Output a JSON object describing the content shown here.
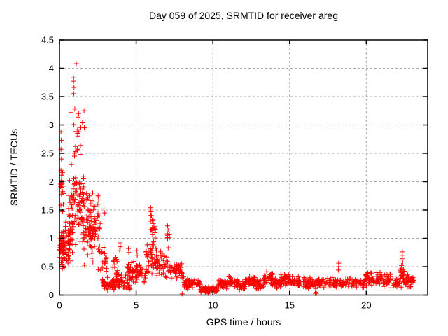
{
  "chart_data": {
    "type": "scatter",
    "title": "Day 059 of 2025, SRMTID for receiver areg",
    "xlabel": "GPS time / hours",
    "ylabel": "SRMTID / TECUs",
    "xlim": [
      0,
      24
    ],
    "ylim": [
      0,
      4.5
    ],
    "xtick_values": [
      0,
      5,
      10,
      15,
      20
    ],
    "xtick_labels": [
      "0",
      "5",
      "10",
      "15",
      "20"
    ],
    "ytick_values": [
      0,
      0.5,
      1,
      1.5,
      2,
      2.5,
      3,
      3.5,
      4,
      4.5
    ],
    "ytick_labels": [
      "0",
      "0.5",
      "1",
      "1.5",
      "2",
      "2.5",
      "3",
      "3.5",
      "4",
      "4.5"
    ],
    "grid": true,
    "legend": "none",
    "series_name": "SRMTID",
    "marker": {
      "shape": "plus",
      "color": "#ff0000",
      "size": 7,
      "stroke_width": 1
    },
    "colors": {
      "axis": "#000000",
      "grid": "#a8a8a8",
      "background": "#ffffff",
      "text": "#000000"
    },
    "max_point": [
      1.1,
      4.08
    ],
    "outlier_points": [
      [
        1.1,
        4.08
      ],
      [
        0.92,
        3.83
      ],
      [
        0.92,
        3.77
      ],
      [
        0.95,
        3.66
      ],
      [
        0.93,
        3.55
      ],
      [
        1.0,
        3.28
      ],
      [
        1.6,
        3.25
      ],
      [
        0.75,
        3.22
      ],
      [
        1.25,
        3.2
      ],
      [
        1.22,
        3.14
      ],
      [
        1.5,
        3.05
      ],
      [
        1.62,
        2.95
      ],
      [
        0.1,
        2.88
      ],
      [
        0.12,
        2.73
      ],
      [
        0.1,
        2.57
      ],
      [
        0.13,
        2.4
      ],
      [
        0.1,
        2.2
      ],
      [
        0.12,
        2.02
      ],
      [
        0.15,
        1.9
      ],
      [
        0.13,
        1.78
      ],
      [
        1.05,
        2.62
      ],
      [
        1.15,
        2.55
      ],
      [
        0.98,
        2.45
      ],
      [
        1.35,
        2.48
      ],
      [
        2.52,
        1.75
      ],
      [
        2.55,
        1.68
      ],
      [
        2.5,
        1.6
      ],
      [
        2.9,
        1.52
      ],
      [
        2.95,
        1.45
      ],
      [
        5.95,
        1.54
      ],
      [
        5.97,
        1.47
      ],
      [
        6.0,
        1.4
      ],
      [
        6.1,
        1.33
      ],
      [
        6.12,
        1.26
      ],
      [
        7.05,
        1.22
      ],
      [
        7.08,
        1.15
      ],
      [
        7.03,
        1.08
      ],
      [
        3.95,
        0.92
      ],
      [
        3.97,
        0.85
      ],
      [
        3.93,
        0.78
      ],
      [
        4.5,
        0.82
      ],
      [
        4.52,
        0.75
      ],
      [
        5.05,
        0.78
      ],
      [
        5.07,
        0.7
      ],
      [
        18.2,
        0.56
      ],
      [
        18.2,
        0.5
      ],
      [
        18.18,
        0.44
      ],
      [
        22.35,
        0.76
      ],
      [
        22.35,
        0.7
      ],
      [
        22.33,
        0.64
      ],
      [
        22.37,
        0.58
      ],
      [
        22.3,
        0.52
      ],
      [
        8.0,
        0.02
      ],
      [
        9.7,
        0.03
      ],
      [
        16.68,
        0.03
      ],
      [
        16.75,
        0.03
      ],
      [
        16.72,
        0.05
      ]
    ],
    "density_bands": [
      [
        0.0,
        0.35,
        0.42,
        1.25,
        60
      ],
      [
        0.05,
        0.3,
        1.3,
        2.3,
        14
      ],
      [
        0.35,
        0.9,
        0.5,
        1.45,
        55
      ],
      [
        0.6,
        1.6,
        0.8,
        2.35,
        95
      ],
      [
        0.9,
        1.4,
        2.35,
        3.1,
        12
      ],
      [
        1.4,
        2.3,
        0.5,
        1.9,
        75
      ],
      [
        1.9,
        2.45,
        0.85,
        1.45,
        28
      ],
      [
        2.4,
        2.65,
        0.85,
        1.6,
        12
      ],
      [
        2.5,
        3.1,
        0.35,
        0.9,
        24
      ],
      [
        2.75,
        2.95,
        0.12,
        0.3,
        8
      ],
      [
        2.9,
        3.7,
        0.05,
        0.32,
        50
      ],
      [
        3.45,
        3.8,
        0.3,
        0.8,
        14
      ],
      [
        3.7,
        4.6,
        0.06,
        0.42,
        55
      ],
      [
        4.4,
        5.6,
        0.2,
        0.62,
        70
      ],
      [
        5.6,
        6.35,
        0.3,
        1.05,
        48
      ],
      [
        5.88,
        6.1,
        1.0,
        1.45,
        8
      ],
      [
        6.05,
        6.28,
        0.9,
        1.28,
        8
      ],
      [
        6.3,
        7.1,
        0.25,
        0.8,
        45
      ],
      [
        7.0,
        7.18,
        0.78,
        1.15,
        6
      ],
      [
        7.15,
        8.1,
        0.22,
        0.62,
        50
      ],
      [
        8.1,
        9.2,
        0.08,
        0.3,
        55
      ],
      [
        9.2,
        10.3,
        0.03,
        0.17,
        60
      ],
      [
        10.3,
        11.0,
        0.08,
        0.3,
        45
      ],
      [
        11.0,
        11.6,
        0.12,
        0.35,
        35
      ],
      [
        11.6,
        12.1,
        0.08,
        0.25,
        30
      ],
      [
        12.1,
        12.8,
        0.12,
        0.35,
        40
      ],
      [
        12.8,
        13.3,
        0.08,
        0.28,
        30
      ],
      [
        13.3,
        13.9,
        0.15,
        0.45,
        40
      ],
      [
        13.9,
        14.4,
        0.1,
        0.3,
        30
      ],
      [
        14.4,
        15.0,
        0.12,
        0.38,
        35
      ],
      [
        15.0,
        15.7,
        0.1,
        0.35,
        40
      ],
      [
        15.7,
        16.8,
        0.1,
        0.32,
        55
      ],
      [
        16.8,
        18.0,
        0.1,
        0.32,
        55
      ],
      [
        18.0,
        19.9,
        0.1,
        0.3,
        80
      ],
      [
        19.9,
        21.6,
        0.14,
        0.42,
        90
      ],
      [
        21.6,
        22.2,
        0.1,
        0.32,
        25
      ],
      [
        22.2,
        22.55,
        0.12,
        0.55,
        25
      ],
      [
        22.5,
        23.1,
        0.12,
        0.38,
        35
      ]
    ],
    "seed": 59
  }
}
